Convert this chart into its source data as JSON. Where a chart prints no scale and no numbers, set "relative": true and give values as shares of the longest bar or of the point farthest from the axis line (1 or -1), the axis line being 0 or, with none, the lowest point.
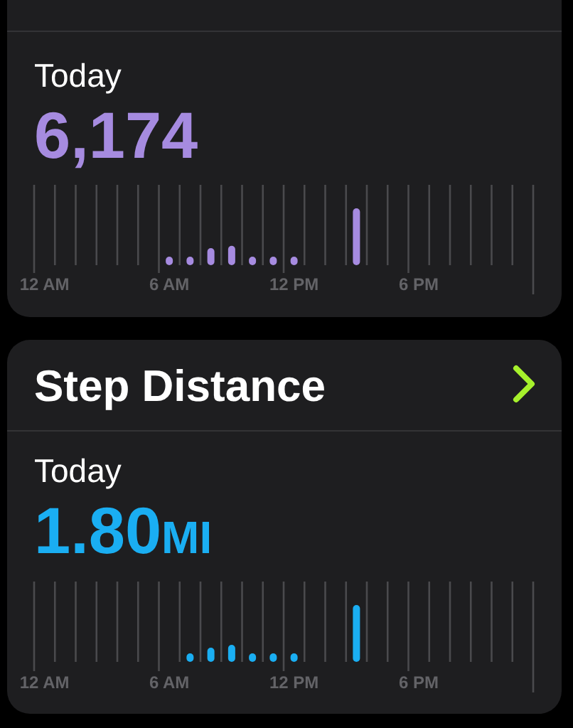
{
  "chart_data": [
    {
      "type": "bar",
      "subtitle": "Today",
      "annotations": [
        "6,174"
      ],
      "categories": [
        "12 AM",
        null,
        null,
        null,
        null,
        null,
        "6 AM",
        null,
        null,
        null,
        null,
        null,
        "12 PM",
        null,
        null,
        null,
        null,
        null,
        "6 PM",
        null,
        null,
        null,
        null,
        null
      ],
      "values": [
        null,
        null,
        null,
        null,
        null,
        null,
        0.15,
        0.15,
        0.3,
        0.34,
        0.15,
        0.15,
        0.15,
        null,
        null,
        1,
        null,
        null,
        null,
        null,
        null,
        null,
        null,
        null
      ],
      "color": "#a68be0",
      "relative": true,
      "grid": "x"
    },
    {
      "type": "bar",
      "title": "Step Distance",
      "subtitle": "Today",
      "annotations": [
        "1.80MI"
      ],
      "categories": [
        "12 AM",
        null,
        null,
        null,
        null,
        null,
        "6 AM",
        null,
        null,
        null,
        null,
        null,
        "12 PM",
        null,
        null,
        null,
        null,
        null,
        "6 PM",
        null,
        null,
        null,
        null,
        null
      ],
      "values": [
        null,
        null,
        null,
        null,
        null,
        null,
        null,
        0.15,
        0.25,
        0.3,
        0.15,
        0.15,
        0.15,
        null,
        null,
        1,
        null,
        null,
        null,
        null,
        null,
        null,
        null,
        null
      ],
      "color": "#1aaef2",
      "relative": true,
      "grid": "x"
    }
  ]
}
